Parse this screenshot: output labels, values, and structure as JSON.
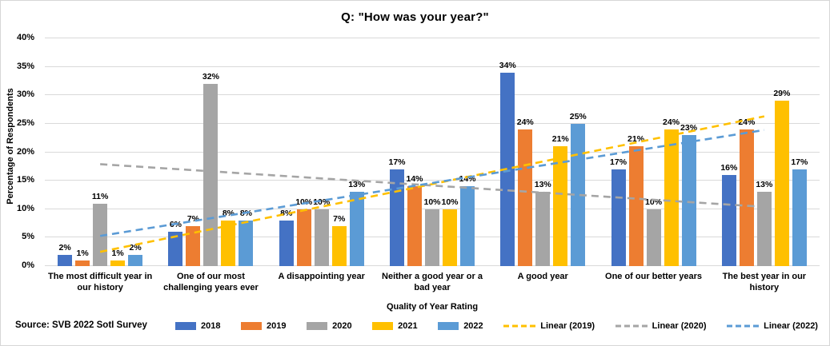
{
  "title": "Q: \"How was your year?\"",
  "source": "Source: SVB 2022 SotI Survey",
  "colors": {
    "gridline": "#d9d9d9",
    "text": "#000000"
  },
  "chart_data": {
    "type": "bar",
    "title": "Q: \"How was your year?\"",
    "xlabel": "Quality of Year Rating",
    "ylabel": "Percentage of Respondents",
    "ylim": [
      0,
      40
    ],
    "ytick_step": 5,
    "ytick_suffix": "%",
    "grid": true,
    "legend_position": "bottom",
    "value_label_suffix": "%",
    "categories": [
      "The most difficult year in our history",
      "One of our most challenging years ever",
      "A disappointing year",
      "Neither a good year or a bad year",
      "A good year",
      "One of our better years",
      "The best year in our history"
    ],
    "category_lines": [
      [
        "The most difficult year in",
        "our history"
      ],
      [
        "One of our most",
        "challenging years ever"
      ],
      [
        "A disappointing year"
      ],
      [
        "Neither a good year or a",
        "bad year"
      ],
      [
        "A good year"
      ],
      [
        "One of our better years"
      ],
      [
        "The best year in our history"
      ]
    ],
    "series": [
      {
        "name": "2018",
        "color": "#4472c4",
        "values": [
          2,
          6,
          8,
          17,
          34,
          17,
          16
        ]
      },
      {
        "name": "2019",
        "color": "#ed7d31",
        "values": [
          1,
          7,
          10,
          14,
          24,
          21,
          24
        ]
      },
      {
        "name": "2020",
        "color": "#a5a5a5",
        "values": [
          11,
          32,
          10,
          10,
          13,
          10,
          13
        ]
      },
      {
        "name": "2021",
        "color": "#ffc000",
        "values": [
          1,
          8,
          7,
          10,
          21,
          24,
          29
        ]
      },
      {
        "name": "2022",
        "color": "#5b9bd5",
        "values": [
          2,
          8,
          13,
          14,
          25,
          23,
          17
        ]
      }
    ],
    "trendlines": [
      {
        "name": "Linear (2019)",
        "color": "#ffc000",
        "start_pct": 2.5,
        "end_pct": 26.3
      },
      {
        "name": "Linear (2020)",
        "color": "#a5a5a5",
        "start_pct": 17.9,
        "end_pct": 10.4
      },
      {
        "name": "Linear (2022)",
        "color": "#5b9bd5",
        "start_pct": 5.3,
        "end_pct": 23.9
      }
    ]
  }
}
